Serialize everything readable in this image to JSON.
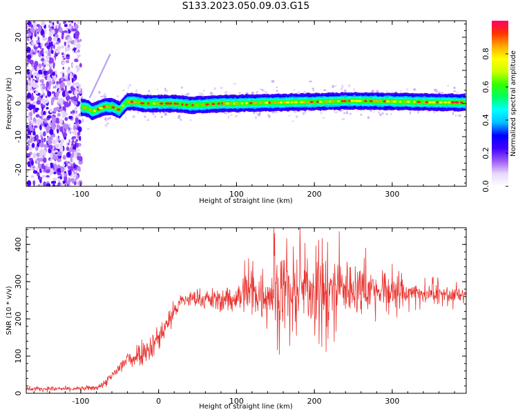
{
  "title": "S133.2023.050.09.03.G15",
  "colors": {
    "snr_line": "#e8302c",
    "scatter_dots": "#8a2be2",
    "colormap": [
      "#ffffff",
      "#e9d7fa",
      "#9b59f6",
      "#3f00ff",
      "#0000ff",
      "#00bfff",
      "#00ffff",
      "#00ff66",
      "#33ff00",
      "#ccff00",
      "#ffff00",
      "#ffaa00",
      "#ff3300",
      "#ff0066"
    ]
  },
  "chart_data": [
    {
      "type": "heatmap",
      "name": "spectrogram",
      "xlabel": "Height of straight line (km)",
      "ylabel": "Frequency (Hz)",
      "xlim": [
        -170,
        395
      ],
      "ylim": [
        -25,
        25
      ],
      "xticks": [
        -100,
        0,
        100,
        200,
        300
      ],
      "yticks": [
        -20,
        -10,
        0,
        10,
        20
      ],
      "colorbar": {
        "label": "Normalized spectral amplitude",
        "range": [
          0,
          1
        ],
        "ticks": [
          0.0,
          0.2,
          0.4,
          0.6,
          0.8
        ]
      },
      "noise_region_x": [
        -170,
        -100
      ],
      "signal_track": {
        "x": [
          -100,
          -90,
          -85,
          -80,
          -75,
          -70,
          -65,
          -60,
          -55,
          -50,
          -45,
          -40,
          -35,
          -30,
          -25,
          -20,
          0,
          20,
          40,
          60,
          80,
          100,
          150,
          200,
          250,
          300,
          350,
          395
        ],
        "freq": [
          -1.0,
          -1.5,
          -2.5,
          -2.0,
          -1.5,
          -1.0,
          -1.0,
          -1.0,
          -1.5,
          -2.0,
          -0.5,
          0.5,
          0.5,
          0.5,
          0.3,
          0.0,
          0.0,
          0.0,
          -0.5,
          -0.3,
          0.0,
          0.0,
          0.3,
          0.5,
          0.8,
          0.6,
          0.4,
          0.3
        ]
      }
    },
    {
      "type": "line",
      "name": "snr",
      "xlabel": "Height of straight line (km)",
      "ylabel": "SNR (10 * v/v)",
      "xlim": [
        -170,
        395
      ],
      "ylim": [
        0,
        445
      ],
      "xticks": [
        -100,
        0,
        100,
        200,
        300
      ],
      "yticks": [
        0,
        100,
        200,
        300,
        400
      ],
      "envelope": {
        "x": [
          -170,
          -100,
          -80,
          -70,
          -60,
          -50,
          -40,
          -30,
          -20,
          -10,
          0,
          10,
          20,
          30,
          50,
          80,
          100,
          120,
          150,
          200,
          250,
          300,
          350,
          395
        ],
        "mean": [
          12,
          12,
          15,
          25,
          45,
          70,
          90,
          100,
          115,
          125,
          150,
          185,
          220,
          250,
          255,
          250,
          258,
          265,
          275,
          285,
          285,
          275,
          270,
          262
        ],
        "spread": [
          5,
          5,
          6,
          8,
          12,
          18,
          22,
          25,
          28,
          30,
          30,
          28,
          25,
          15,
          20,
          25,
          35,
          55,
          75,
          75,
          60,
          30,
          18,
          15
        ],
        "peak": {
          "x": 148,
          "y": 445
        }
      }
    }
  ]
}
